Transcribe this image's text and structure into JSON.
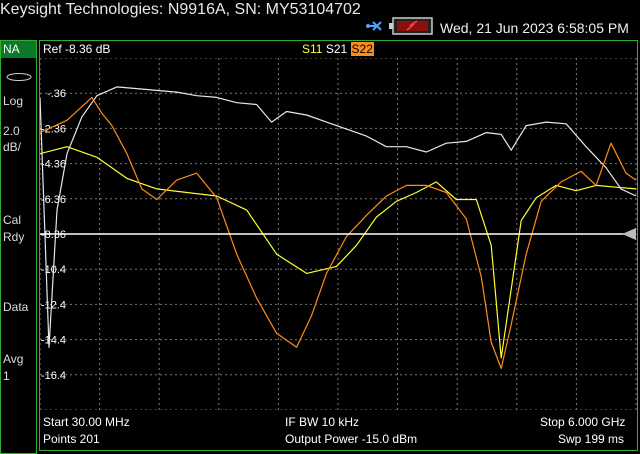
{
  "window": {
    "title": "Keysight Technologies: N9916A, SN: MY53104702",
    "datetime": "Wed, 21 Jun 2023 6:58:05 PM"
  },
  "left_panel": {
    "mode": "NA",
    "format": "Log",
    "scale": "2.0",
    "scale_unit": "dB/",
    "cal": "Cal",
    "cal_state": "Rdy",
    "data": "Data",
    "avg": "Avg",
    "avg_count": "1"
  },
  "plot": {
    "ref_label": "Ref -8.36 dB",
    "traces": {
      "s11": "S11",
      "s21": "S21",
      "s22": "S22"
    }
  },
  "footer": {
    "start": "Start 30.00 MHz",
    "points": "Points 201",
    "ifbw": "IF BW 10 kHz",
    "output_power": "Output Power -15.0 dBm",
    "stop": "Stop 6.000 GHz",
    "sweep": "Swp 199 ms"
  },
  "chart_data": {
    "type": "line",
    "xlabel": "",
    "ylabel": "",
    "xlim": [
      0.03,
      6.0
    ],
    "ylim": [
      -18.36,
      1.64
    ],
    "ref_level": -8.36,
    "y_tick_labels": [
      "-.36",
      "-2.36",
      "-4.36",
      "-6.36",
      "-8.36",
      "-10.4",
      "-12.4",
      "-14.4",
      "-16.4"
    ],
    "y_tick_values": [
      -0.36,
      -2.36,
      -4.36,
      -6.36,
      -8.36,
      -10.36,
      -12.36,
      -14.36,
      -16.36
    ],
    "grid": true,
    "colors": {
      "S11": "#ffff33",
      "S21": "#e8e8e8",
      "S22": "#ff8c1a",
      "grid": "#7a7a7a",
      "ref": "#ffffff"
    },
    "series": [
      {
        "name": "S21",
        "x": [
          0.03,
          0.12,
          0.2,
          0.3,
          0.45,
          0.6,
          0.8,
          1.0,
          1.2,
          1.4,
          1.6,
          1.8,
          2.0,
          2.2,
          2.35,
          2.5,
          2.7,
          2.9,
          3.1,
          3.3,
          3.5,
          3.7,
          3.9,
          4.1,
          4.3,
          4.5,
          4.65,
          4.75,
          4.9,
          5.1,
          5.3,
          5.5,
          5.7,
          5.85,
          6.0
        ],
        "y": [
          -0.6,
          -14.8,
          -7.0,
          -3.8,
          -1.7,
          -0.5,
          0.0,
          -0.1,
          -0.2,
          -0.3,
          -0.5,
          -0.6,
          -0.9,
          -1.0,
          -2.0,
          -1.4,
          -1.6,
          -2.0,
          -2.4,
          -2.8,
          -3.4,
          -3.4,
          -3.7,
          -3.2,
          -3.1,
          -2.6,
          -2.7,
          -3.6,
          -2.2,
          -2.0,
          -2.1,
          -3.4,
          -4.6,
          -5.8,
          -6.2
        ]
      },
      {
        "name": "S11",
        "x": [
          0.03,
          0.3,
          0.6,
          0.9,
          1.2,
          1.5,
          1.8,
          2.1,
          2.4,
          2.7,
          3.0,
          3.2,
          3.4,
          3.6,
          3.8,
          4.0,
          4.2,
          4.4,
          4.55,
          4.65,
          4.75,
          4.85,
          5.0,
          5.2,
          5.4,
          5.6,
          5.8,
          6.0
        ],
        "y": [
          -3.8,
          -3.4,
          -4.0,
          -5.2,
          -5.8,
          -6.0,
          -6.2,
          -7.0,
          -9.5,
          -10.6,
          -10.2,
          -9.0,
          -7.4,
          -6.5,
          -6.0,
          -5.4,
          -6.4,
          -6.4,
          -9.0,
          -15.4,
          -11.5,
          -7.6,
          -6.3,
          -5.6,
          -5.9,
          -5.6,
          -5.7,
          -5.8
        ]
      },
      {
        "name": "S22",
        "x": [
          0.03,
          0.3,
          0.55,
          0.65,
          0.75,
          0.9,
          1.05,
          1.2,
          1.4,
          1.6,
          1.8,
          2.0,
          2.2,
          2.4,
          2.6,
          2.75,
          2.9,
          3.1,
          3.3,
          3.5,
          3.7,
          3.9,
          4.1,
          4.3,
          4.45,
          4.55,
          4.65,
          4.75,
          4.9,
          5.05,
          5.25,
          5.45,
          5.6,
          5.75,
          5.9,
          6.0
        ],
        "y": [
          -2.6,
          -1.9,
          -0.6,
          -1.5,
          -2.2,
          -3.8,
          -5.8,
          -6.4,
          -5.3,
          -4.9,
          -6.3,
          -9.5,
          -12.0,
          -14.0,
          -14.8,
          -13.0,
          -10.6,
          -8.5,
          -7.3,
          -6.2,
          -5.6,
          -5.6,
          -6.0,
          -7.5,
          -10.8,
          -14.5,
          -16.0,
          -13.5,
          -9.5,
          -6.5,
          -5.4,
          -4.8,
          -5.6,
          -3.2,
          -4.9,
          -5.3
        ]
      }
    ]
  }
}
